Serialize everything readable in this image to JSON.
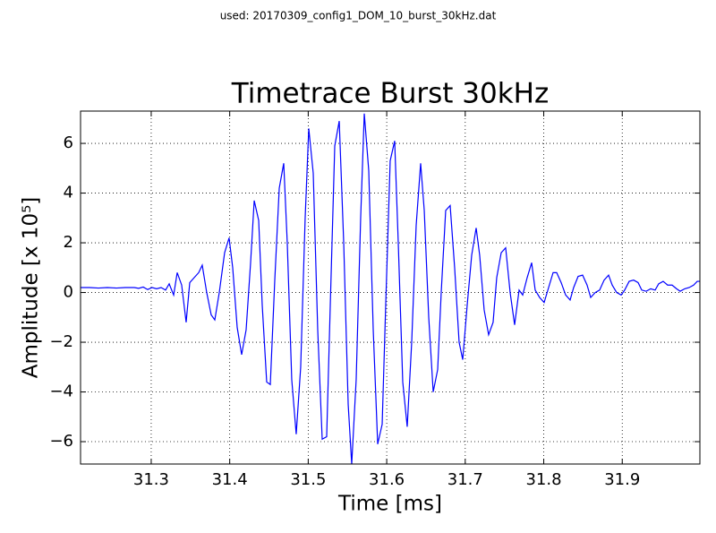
{
  "chart_data": {
    "type": "line",
    "suptitle": "used: 20170309_config1_DOM_10_burst_30kHz.dat",
    "title": "Timetrace Burst 30kHz",
    "xlabel": "Time [ms]",
    "ylabel": "Amplitude [x 10⁵]",
    "x": [
      31.21,
      31.2214,
      31.2328,
      31.2442,
      31.2556,
      31.267,
      31.2784,
      31.2841,
      31.2898,
      31.2955,
      31.3012,
      31.3069,
      31.3126,
      31.3183,
      31.3229,
      31.3286,
      31.3331,
      31.3388,
      31.3445,
      31.3491,
      31.3548,
      31.3605,
      31.365,
      31.3707,
      31.3764,
      31.381,
      31.3867,
      31.3935,
      31.3992,
      31.4038,
      31.4095,
      31.4152,
      31.4209,
      31.4266,
      31.4312,
      31.4369,
      31.4414,
      31.4471,
      31.4517,
      31.4574,
      31.4631,
      31.4688,
      31.4733,
      31.479,
      31.4847,
      31.4904,
      31.4961,
      31.5007,
      31.5064,
      31.5121,
      31.5178,
      31.5235,
      31.5281,
      31.5338,
      31.5395,
      31.5452,
      31.5509,
      31.5554,
      31.5611,
      31.5668,
      31.5714,
      31.5771,
      31.5828,
      31.5885,
      31.5942,
      31.5987,
      31.6044,
      31.6101,
      31.6147,
      31.6204,
      31.6261,
      31.6318,
      31.6375,
      31.6432,
      31.6478,
      31.6535,
      31.6592,
      31.6649,
      31.6694,
      31.6751,
      31.6808,
      31.6865,
      31.6922,
      31.6968,
      31.7025,
      31.7082,
      31.7139,
      31.7184,
      31.7241,
      31.7298,
      31.7355,
      31.7401,
      31.7458,
      31.7515,
      31.7572,
      31.7629,
      31.7686,
      31.7732,
      31.7789,
      31.7846,
      31.7891,
      31.7948,
      31.8005,
      31.8062,
      31.8119,
      31.8165,
      31.8222,
      31.8279,
      31.8336,
      31.8381,
      31.8438,
      31.8495,
      31.8552,
      31.8598,
      31.8655,
      31.8712,
      31.8769,
      31.8826,
      31.8872,
      31.8929,
      31.8986,
      31.9031,
      31.9088,
      31.9145,
      31.9202,
      31.9248,
      31.9305,
      31.9362,
      31.9419,
      31.9464,
      31.9521,
      31.9578,
      31.9635,
      31.9692,
      31.9738,
      31.9795,
      31.9852,
      31.9909,
      31.9955,
      31.9989
    ],
    "series": [
      {
        "color": "#0000ff",
        "values": [
          0.2,
          0.2,
          0.18,
          0.2,
          0.18,
          0.2,
          0.2,
          0.17,
          0.22,
          0.12,
          0.2,
          0.15,
          0.2,
          0.1,
          0.35,
          -0.1,
          0.8,
          0.3,
          -1.2,
          0.4,
          0.6,
          0.8,
          1.1,
          0.0,
          -0.9,
          -1.1,
          0.0,
          1.6,
          2.2,
          1.0,
          -1.4,
          -2.5,
          -1.5,
          1.2,
          3.7,
          2.9,
          -0.5,
          -3.6,
          -3.7,
          0.5,
          4.2,
          5.2,
          2.0,
          -3.5,
          -5.7,
          -3.0,
          3.0,
          6.6,
          4.8,
          -1.5,
          -5.9,
          -5.8,
          -0.5,
          5.9,
          6.9,
          2.0,
          -4.5,
          -6.9,
          -3.5,
          3.0,
          7.2,
          4.9,
          -1.5,
          -6.1,
          -5.3,
          -0.5,
          5.3,
          6.1,
          2.0,
          -3.6,
          -5.4,
          -2.0,
          2.7,
          5.2,
          3.3,
          -1.0,
          -4.0,
          -3.1,
          0.0,
          3.3,
          3.5,
          1.0,
          -2.0,
          -2.7,
          -0.5,
          1.5,
          2.6,
          1.5,
          -0.7,
          -1.7,
          -1.2,
          0.6,
          1.6,
          1.8,
          0.0,
          -1.3,
          0.1,
          -0.1,
          0.6,
          1.2,
          0.1,
          -0.2,
          -0.4,
          0.2,
          0.8,
          0.8,
          0.4,
          -0.1,
          -0.3,
          0.2,
          0.65,
          0.7,
          0.3,
          -0.2,
          0.0,
          0.1,
          0.5,
          0.7,
          0.3,
          0.0,
          -0.1,
          0.1,
          0.45,
          0.5,
          0.4,
          0.1,
          0.05,
          0.15,
          0.1,
          0.35,
          0.45,
          0.3,
          0.3,
          0.15,
          0.05,
          0.15,
          0.2,
          0.3,
          0.45,
          0.45
        ]
      }
    ],
    "xlim": [
      31.21,
      31.9989
    ],
    "xticks": [
      31.3,
      31.4,
      31.5,
      31.6,
      31.7,
      31.8,
      31.9
    ],
    "ylim": [
      -6.9,
      7.3
    ],
    "yticks": [
      {
        "value": -6,
        "label": "−6"
      },
      {
        "value": -4,
        "label": "−4"
      },
      {
        "value": -2,
        "label": "−2"
      },
      0,
      2,
      4,
      6
    ],
    "grid": true
  }
}
